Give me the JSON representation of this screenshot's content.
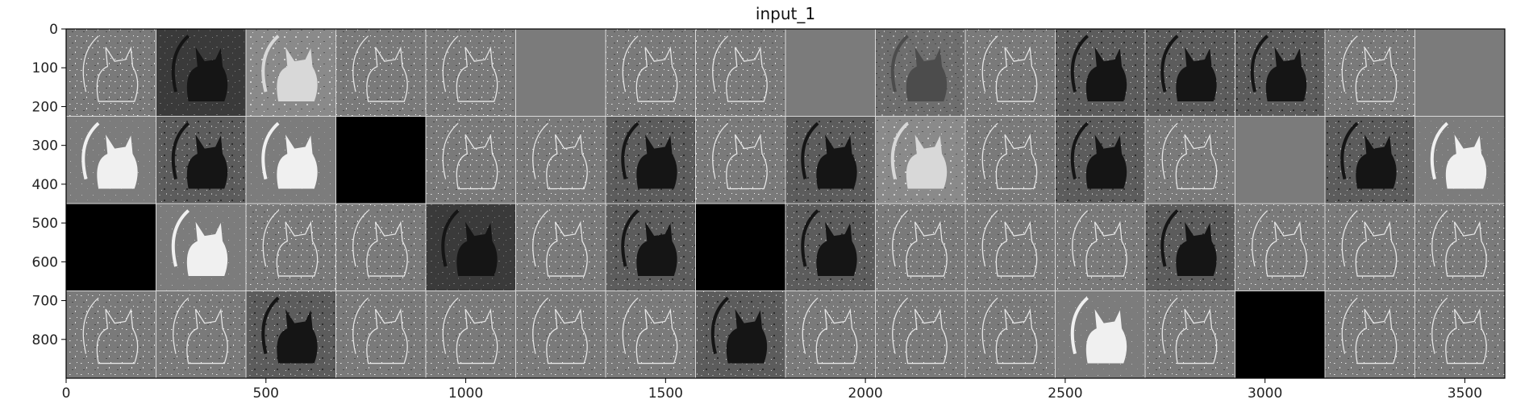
{
  "chart_data": {
    "type": "heatmap",
    "title": "input_1",
    "xlabel": "",
    "ylabel": "",
    "xlim": [
      0,
      3600
    ],
    "ylim": [
      900,
      0
    ],
    "x_ticks": [
      "0",
      "500",
      "1000",
      "1500",
      "2000",
      "2500",
      "3000",
      "3500"
    ],
    "y_ticks": [
      "0",
      "100",
      "200",
      "300",
      "400",
      "500",
      "600",
      "700",
      "800"
    ],
    "grid": false,
    "legend": "none",
    "colormap": "gray",
    "grid_layout": {
      "rows": 4,
      "cols": 16,
      "tile_size": 225
    },
    "tiles": [
      "edge",
      "dark",
      "bright",
      "edge",
      "edge",
      "flat",
      "edge",
      "edge",
      "flat",
      "mid",
      "edge",
      "darkcat",
      "darkcat",
      "darkcat",
      "edge",
      "flat",
      "white",
      "darkcat",
      "white",
      "black",
      "edge",
      "edge",
      "darkcat",
      "edge",
      "darkcat",
      "bright",
      "edge",
      "darkcat",
      "edge",
      "flat",
      "darkcat",
      "white",
      "black",
      "white",
      "edge",
      "edge",
      "dark",
      "edge",
      "darkcat",
      "black",
      "darkcat",
      "edge",
      "edge",
      "edge",
      "darkcat",
      "edge",
      "edge",
      "edge",
      "edge",
      "edge",
      "darkcat",
      "edge",
      "edge",
      "edge",
      "edge",
      "darkcat",
      "edge",
      "edge",
      "edge",
      "white",
      "edge",
      "black",
      "edge",
      "edge"
    ]
  },
  "colors": {
    "background": "#ffffff",
    "axis": "#000000",
    "flat": "#7b7b7b",
    "black": "#000000",
    "white": "#f0f0f0"
  }
}
